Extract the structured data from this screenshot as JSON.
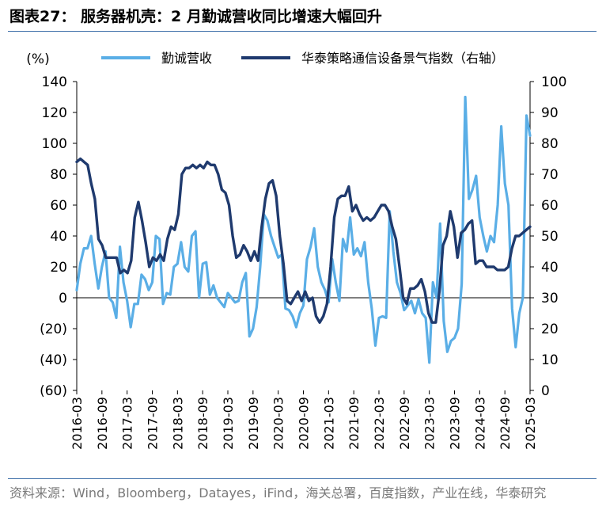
{
  "title": "图表27：  服务器机壳：2 月勤诚营收同比增速大幅回升",
  "source": "资料来源：Wind，Bloomberg，Datayes，iFind，海关总署，百度指数，产业在线，华泰研究",
  "chart_data": {
    "type": "line",
    "y_left_unit": "(%)",
    "y_left_ticks": [
      "140",
      "120",
      "100",
      "80",
      "60",
      "40",
      "20",
      "0",
      "(20)",
      "(40)",
      "(60)"
    ],
    "y_left_lim": [
      -60,
      140
    ],
    "y_right_ticks": [
      "100",
      "90",
      "80",
      "70",
      "60",
      "50",
      "40",
      "30",
      "20",
      "10",
      "0"
    ],
    "y_right_lim": [
      0,
      100
    ],
    "x_tick_labels": [
      "2016-03",
      "2016-09",
      "2017-03",
      "2017-09",
      "2018-03",
      "2018-09",
      "2019-03",
      "2019-09",
      "2020-03",
      "2020-09",
      "2021-03",
      "2021-09",
      "2022-03",
      "2022-09",
      "2023-03",
      "2023-09",
      "2024-03",
      "2024-09",
      "2025-03"
    ],
    "x_range": [
      "2016-03",
      "2025-03"
    ],
    "colors": {
      "revenue": "#5aaee6",
      "index": "#1f3a6e"
    },
    "series": [
      {
        "name": "勤诚营收",
        "axis": "left",
        "values": [
          5,
          22,
          32,
          32,
          40,
          22,
          6,
          20,
          30,
          0,
          -3,
          -13,
          33,
          10,
          -2,
          -19,
          -4,
          -4,
          15,
          12,
          5,
          10,
          40,
          38,
          -4,
          3,
          2,
          20,
          22,
          36,
          20,
          17,
          40,
          43,
          0,
          22,
          23,
          2,
          8,
          0,
          -3,
          -6,
          3,
          0,
          -3,
          -2,
          10,
          16,
          -25,
          -20,
          -6,
          20,
          54,
          50,
          40,
          33,
          26,
          28,
          -7,
          -8,
          -12,
          -19,
          -10,
          -5,
          25,
          33,
          45,
          20,
          10,
          5,
          -3,
          25,
          10,
          -2,
          38,
          30,
          52,
          28,
          32,
          27,
          36,
          10,
          -7,
          -31,
          -13,
          -12,
          -13,
          56,
          30,
          10,
          3,
          -8,
          -5,
          -2,
          -10,
          -1,
          -10,
          -13,
          -42,
          10,
          0,
          48,
          -15,
          -35,
          -28,
          -26,
          -20,
          9,
          130,
          64,
          70,
          79,
          52,
          40,
          30,
          40,
          36,
          60,
          111,
          74,
          60,
          -7,
          -32,
          -10,
          0,
          118,
          105
        ]
      },
      {
        "name": "华泰策略通信设备景气指数（右轴）",
        "axis": "right",
        "values": [
          74,
          75,
          74,
          73,
          67,
          62,
          49,
          47,
          43,
          43,
          43,
          43,
          38,
          39,
          38,
          42,
          56,
          61,
          55,
          48,
          40,
          43,
          42,
          44,
          42,
          49,
          53,
          52,
          57,
          70,
          72,
          72,
          73,
          72,
          73,
          72,
          74,
          73,
          73,
          70,
          65,
          64,
          60,
          50,
          43,
          44,
          47,
          45,
          42,
          45,
          42,
          53,
          62,
          67,
          68,
          63,
          50,
          41,
          29,
          28,
          30,
          32,
          29,
          32,
          29,
          30,
          24,
          22,
          24,
          28,
          40,
          56,
          62,
          63,
          63,
          66,
          58,
          60,
          57,
          55,
          56,
          55,
          56,
          58,
          60,
          60,
          58,
          53,
          49,
          40,
          30,
          28,
          33,
          33,
          34,
          36,
          32,
          25,
          22,
          22,
          32,
          47,
          50,
          58,
          53,
          43,
          51,
          52,
          54,
          55,
          41,
          42,
          42,
          40,
          40,
          40,
          39,
          39,
          39,
          40,
          46,
          50,
          50,
          51,
          52,
          53
        ]
      }
    ]
  }
}
